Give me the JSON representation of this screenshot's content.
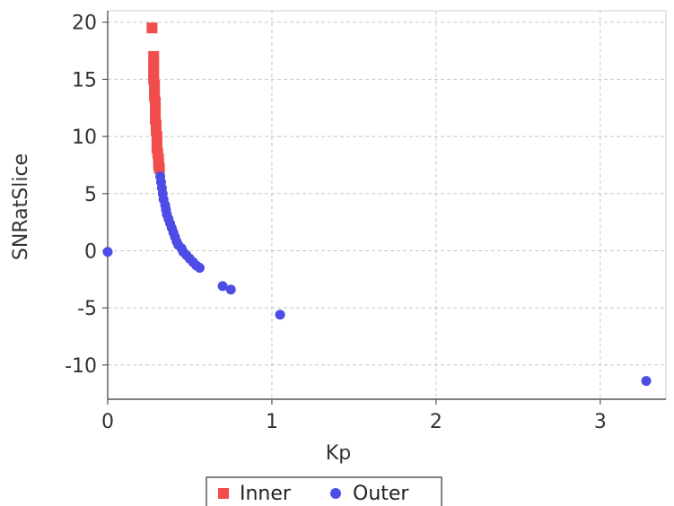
{
  "chart_data": {
    "type": "scatter",
    "title": "",
    "xlabel": "Kp",
    "ylabel": "SNRatSlice",
    "xlim": [
      0,
      3.4
    ],
    "ylim": [
      -13,
      21
    ],
    "xticks": [
      "0",
      "1",
      "2",
      "3"
    ],
    "xtick_values": [
      0,
      1,
      2,
      3
    ],
    "yticks": [
      "20",
      "15",
      "10",
      "5",
      "0",
      "-5",
      "-10"
    ],
    "ytick_values": [
      20,
      15,
      10,
      5,
      0,
      -5,
      -10
    ],
    "grid": true,
    "legend_position": "bottom-center",
    "series": [
      {
        "name": "Inner",
        "marker": "square",
        "color": "#f24d4d",
        "points": [
          [
            0.27,
            19.5
          ],
          [
            0.28,
            17.0
          ],
          [
            0.28,
            16.5
          ],
          [
            0.28,
            16.0
          ],
          [
            0.28,
            15.5
          ],
          [
            0.28,
            15.0
          ],
          [
            0.285,
            14.5
          ],
          [
            0.285,
            14.0
          ],
          [
            0.285,
            13.5
          ],
          [
            0.29,
            13.0
          ],
          [
            0.29,
            12.5
          ],
          [
            0.29,
            12.0
          ],
          [
            0.29,
            11.5
          ],
          [
            0.295,
            11.0
          ],
          [
            0.295,
            10.5
          ],
          [
            0.3,
            10.0
          ],
          [
            0.3,
            9.5
          ],
          [
            0.3,
            9.0
          ],
          [
            0.305,
            8.5
          ],
          [
            0.31,
            8.0
          ],
          [
            0.31,
            7.5
          ],
          [
            0.315,
            7.2
          ]
        ]
      },
      {
        "name": "Outer",
        "marker": "circle",
        "color": "#4d4de6",
        "points": [
          [
            0.0,
            -0.1
          ],
          [
            0.32,
            6.5
          ],
          [
            0.325,
            6.0
          ],
          [
            0.33,
            5.5
          ],
          [
            0.335,
            5.0
          ],
          [
            0.34,
            4.5
          ],
          [
            0.35,
            4.0
          ],
          [
            0.355,
            3.6
          ],
          [
            0.36,
            3.2
          ],
          [
            0.37,
            2.8
          ],
          [
            0.38,
            2.4
          ],
          [
            0.39,
            2.0
          ],
          [
            0.4,
            1.6
          ],
          [
            0.41,
            1.2
          ],
          [
            0.42,
            0.8
          ],
          [
            0.43,
            0.5
          ],
          [
            0.45,
            0.2
          ],
          [
            0.46,
            -0.1
          ],
          [
            0.48,
            -0.4
          ],
          [
            0.5,
            -0.7
          ],
          [
            0.52,
            -1.0
          ],
          [
            0.54,
            -1.3
          ],
          [
            0.56,
            -1.5
          ],
          [
            0.7,
            -3.1
          ],
          [
            0.75,
            -3.4
          ],
          [
            1.05,
            -5.6
          ],
          [
            3.28,
            -11.4
          ]
        ]
      }
    ]
  }
}
